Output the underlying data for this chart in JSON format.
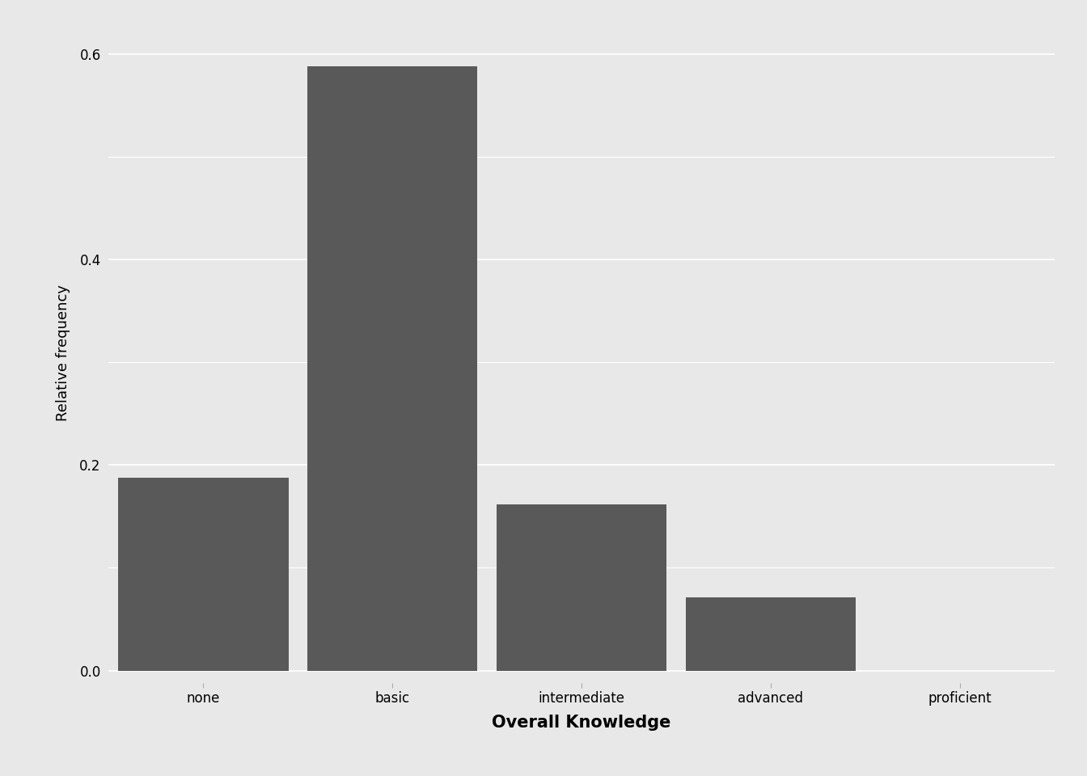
{
  "categories": [
    "none",
    "basic",
    "intermediate",
    "advanced",
    "proficient"
  ],
  "values": [
    0.188,
    0.588,
    0.162,
    0.071,
    0.0
  ],
  "bar_color": "#595959",
  "bar_edge_color": "#595959",
  "background_color": "#e8e8e8",
  "panel_background": "#e8e8e8",
  "grid_color": "#ffffff",
  "minor_grid_color": "#f0f0f0",
  "xlabel": "Overall Knowledge",
  "ylabel": "Relative frequency",
  "ylim": [
    -0.012,
    0.63
  ],
  "yticks": [
    0.0,
    0.2,
    0.4,
    0.6
  ],
  "xlabel_fontsize": 15,
  "ylabel_fontsize": 13,
  "tick_fontsize": 12,
  "bar_width": 0.9
}
